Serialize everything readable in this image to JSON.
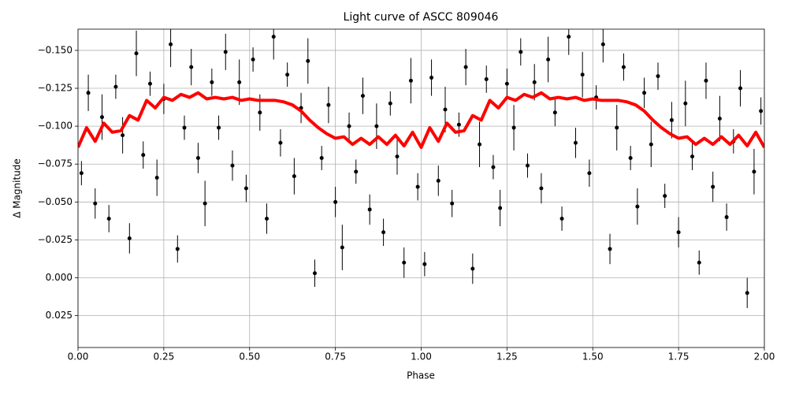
{
  "chart_data": {
    "type": "scatter",
    "title": "Light curve of ASCC 809046",
    "xlabel": "Phase",
    "ylabel": "Δ Magnitude",
    "xlim": [
      0,
      2
    ],
    "ylim": [
      -0.164,
      0.046
    ],
    "y_inverted": true,
    "grid": true,
    "xticks": [
      {
        "value": 0,
        "label": "0.00"
      },
      0.25,
      {
        "value": 0.5,
        "label": "0.50"
      },
      0.75,
      {
        "value": 1,
        "label": "1.00"
      },
      1.25,
      {
        "value": 1.5,
        "label": "1.50"
      },
      1.75,
      {
        "value": 2,
        "label": "2.00"
      }
    ],
    "yticks": [
      {
        "value": -0.15,
        "label": "−0.150"
      },
      {
        "value": -0.125,
        "label": "−0.125"
      },
      {
        "value": -0.1,
        "label": "−0.100"
      },
      {
        "value": -0.075,
        "label": "−0.075"
      },
      {
        "value": -0.05,
        "label": "−0.050"
      },
      {
        "value": -0.025,
        "label": "−0.025"
      },
      {
        "value": 0,
        "label": "0.000"
      },
      0.025
    ],
    "series": [
      {
        "type": "errorbar",
        "color": "#000000",
        "x": [
          0.01,
          0.03,
          0.05,
          0.07,
          0.09,
          0.11,
          0.13,
          0.15,
          0.17,
          0.19,
          0.21,
          0.23,
          0.25,
          0.27,
          0.29,
          0.31,
          0.33,
          0.35,
          0.37,
          0.39,
          0.41,
          0.43,
          0.45,
          0.47,
          0.49,
          0.51,
          0.53,
          0.55,
          0.57,
          0.59,
          0.61,
          0.63,
          0.65,
          0.67,
          0.69,
          0.71,
          0.73,
          0.75,
          0.77,
          0.79,
          0.81,
          0.83,
          0.85,
          0.87,
          0.89,
          0.91,
          0.93,
          0.95,
          0.97,
          0.99,
          1.01,
          1.03,
          1.05,
          1.07,
          1.09,
          1.11,
          1.13,
          1.15,
          1.17,
          1.19,
          1.21,
          1.23,
          1.25,
          1.27,
          1.29,
          1.31,
          1.33,
          1.35,
          1.37,
          1.39,
          1.41,
          1.43,
          1.45,
          1.47,
          1.49,
          1.51,
          1.53,
          1.55,
          1.57,
          1.59,
          1.61,
          1.63,
          1.65,
          1.67,
          1.69,
          1.71,
          1.73,
          1.75,
          1.77,
          1.79,
          1.81,
          1.83,
          1.85,
          1.87,
          1.89,
          1.91,
          1.93,
          1.95,
          1.97,
          1.99
        ],
        "values": [
          -0.069,
          -0.122,
          -0.049,
          -0.106,
          -0.039,
          -0.126,
          -0.094,
          -0.026,
          -0.148,
          -0.081,
          -0.128,
          -0.066,
          -0.118,
          -0.154,
          -0.019,
          -0.099,
          -0.139,
          -0.079,
          -0.049,
          -0.129,
          -0.099,
          -0.149,
          -0.074,
          -0.129,
          -0.059,
          -0.144,
          -0.109,
          -0.039,
          -0.159,
          -0.089,
          -0.134,
          -0.067,
          -0.112,
          -0.143,
          -0.003,
          -0.079,
          -0.114,
          -0.05,
          -0.02,
          -0.1,
          -0.07,
          -0.12,
          -0.045,
          -0.1,
          -0.03,
          -0.115,
          -0.08,
          -0.01,
          -0.13,
          -0.06,
          -0.009,
          -0.132,
          -0.064,
          -0.111,
          -0.049,
          -0.101,
          -0.139,
          -0.006,
          -0.088,
          -0.131,
          -0.073,
          -0.046,
          -0.128,
          -0.099,
          -0.149,
          -0.074,
          -0.129,
          -0.059,
          -0.144,
          -0.109,
          -0.039,
          -0.159,
          -0.089,
          -0.134,
          -0.069,
          -0.119,
          -0.154,
          -0.019,
          -0.099,
          -0.139,
          -0.079,
          -0.047,
          -0.122,
          -0.088,
          -0.133,
          -0.054,
          -0.104,
          -0.03,
          -0.115,
          -0.08,
          -0.01,
          -0.13,
          -0.06,
          -0.105,
          -0.04,
          -0.09,
          -0.125,
          0.01,
          -0.07,
          -0.11
        ],
        "errors": [
          0.008,
          0.012,
          0.01,
          0.015,
          0.009,
          0.008,
          0.012,
          0.01,
          0.015,
          0.009,
          0.008,
          0.012,
          0.01,
          0.015,
          0.009,
          0.008,
          0.012,
          0.01,
          0.015,
          0.009,
          0.008,
          0.012,
          0.01,
          0.015,
          0.009,
          0.008,
          0.012,
          0.01,
          0.015,
          0.009,
          0.008,
          0.012,
          0.01,
          0.015,
          0.009,
          0.008,
          0.012,
          0.01,
          0.015,
          0.009,
          0.008,
          0.012,
          0.01,
          0.015,
          0.009,
          0.008,
          0.012,
          0.01,
          0.015,
          0.009,
          0.008,
          0.012,
          0.01,
          0.015,
          0.009,
          0.008,
          0.012,
          0.01,
          0.015,
          0.009,
          0.008,
          0.012,
          0.01,
          0.015,
          0.009,
          0.008,
          0.012,
          0.01,
          0.015,
          0.009,
          0.008,
          0.012,
          0.01,
          0.015,
          0.009,
          0.008,
          0.012,
          0.01,
          0.015,
          0.009,
          0.008,
          0.012,
          0.01,
          0.015,
          0.009,
          0.008,
          0.012,
          0.01,
          0.015,
          0.009,
          0.008,
          0.012,
          0.01,
          0.015,
          0.009,
          0.008,
          0.012,
          0.01,
          0.015,
          0.009
        ]
      },
      {
        "type": "line",
        "color": "#ff0000",
        "x": [
          0,
          0.025,
          0.05,
          0.075,
          0.1,
          0.125,
          0.15,
          0.175,
          0.2,
          0.225,
          0.25,
          0.275,
          0.3,
          0.325,
          0.35,
          0.375,
          0.4,
          0.425,
          0.45,
          0.475,
          0.5,
          0.525,
          0.55,
          0.575,
          0.6,
          0.625,
          0.65,
          0.675,
          0.7,
          0.725,
          0.75,
          0.775,
          0.8,
          0.825,
          0.85,
          0.875,
          0.9,
          0.925,
          0.95,
          0.975,
          1,
          1.025,
          1.05,
          1.075,
          1.1,
          1.125,
          1.15,
          1.175,
          1.2,
          1.225,
          1.25,
          1.275,
          1.3,
          1.325,
          1.35,
          1.375,
          1.4,
          1.425,
          1.45,
          1.475,
          1.5,
          1.525,
          1.55,
          1.575,
          1.6,
          1.625,
          1.65,
          1.675,
          1.7,
          1.725,
          1.75,
          1.775,
          1.8,
          1.825,
          1.85,
          1.875,
          1.9,
          1.925,
          1.95,
          1.975,
          2
        ],
        "values": [
          -0.086,
          -0.099,
          -0.09,
          -0.102,
          -0.096,
          -0.097,
          -0.107,
          -0.104,
          -0.117,
          -0.112,
          -0.119,
          -0.117,
          -0.121,
          -0.119,
          -0.122,
          -0.118,
          -0.119,
          -0.118,
          -0.119,
          -0.117,
          -0.118,
          -0.117,
          -0.117,
          -0.117,
          -0.116,
          -0.114,
          -0.11,
          -0.104,
          -0.099,
          -0.095,
          -0.092,
          -0.093,
          -0.088,
          -0.092,
          -0.088,
          -0.093,
          -0.088,
          -0.094,
          -0.087,
          -0.096,
          -0.086,
          -0.099,
          -0.09,
          -0.102,
          -0.096,
          -0.097,
          -0.107,
          -0.104,
          -0.117,
          -0.112,
          -0.119,
          -0.117,
          -0.121,
          -0.119,
          -0.122,
          -0.118,
          -0.119,
          -0.118,
          -0.119,
          -0.117,
          -0.118,
          -0.117,
          -0.117,
          -0.117,
          -0.116,
          -0.114,
          -0.11,
          -0.104,
          -0.099,
          -0.095,
          -0.092,
          -0.093,
          -0.088,
          -0.092,
          -0.088,
          -0.093,
          -0.088,
          -0.094,
          -0.087,
          -0.096,
          -0.086
        ]
      }
    ]
  }
}
